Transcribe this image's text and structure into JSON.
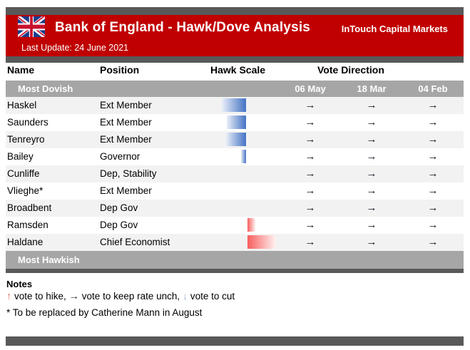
{
  "header": {
    "title": "Bank of England - Hawk/Dove Analysis",
    "brand": "InTouch Capital Markets",
    "last_update": "Last Update: 24 June 2021",
    "banner_color": "#C00000",
    "strip_color": "#595959"
  },
  "table": {
    "columns": {
      "name": "Name",
      "position": "Position",
      "hawk_scale": "Hawk Scale",
      "vote_direction": "Vote Direction"
    },
    "section_top": "Most Dovish",
    "section_bottom": "Most Hawkish",
    "vote_dates": [
      "06 May",
      "18 Mar",
      "04 Feb"
    ],
    "arrow_glyphs": {
      "unchanged": "→",
      "hike": "↑",
      "cut": "↓"
    },
    "rows": [
      {
        "name": "Haskel",
        "position": "Ext Member",
        "hawk_scale": -85,
        "votes": [
          "unchanged",
          "unchanged",
          "unchanged"
        ]
      },
      {
        "name": "Saunders",
        "position": "Ext Member",
        "hawk_scale": -68,
        "votes": [
          "unchanged",
          "unchanged",
          "unchanged"
        ]
      },
      {
        "name": "Tenreyro",
        "position": "Ext Member",
        "hawk_scale": -70,
        "votes": [
          "unchanged",
          "unchanged",
          "unchanged"
        ]
      },
      {
        "name": "Bailey",
        "position": "Governor",
        "hawk_scale": -17,
        "votes": [
          "unchanged",
          "unchanged",
          "unchanged"
        ]
      },
      {
        "name": "Cunliffe",
        "position": "Dep, Stability",
        "hawk_scale": 0,
        "votes": [
          "unchanged",
          "unchanged",
          "unchanged"
        ]
      },
      {
        "name": "Vlieghe*",
        "position": "Ext Member",
        "hawk_scale": 0,
        "votes": [
          "unchanged",
          "unchanged",
          "unchanged"
        ]
      },
      {
        "name": "Broadbent",
        "position": "Dep Gov",
        "hawk_scale": 0,
        "votes": [
          "unchanged",
          "unchanged",
          "unchanged"
        ]
      },
      {
        "name": "Ramsden",
        "position": "Dep Gov",
        "hawk_scale": 27,
        "votes": [
          "unchanged",
          "unchanged",
          "unchanged"
        ]
      },
      {
        "name": "Haldane",
        "position": "Chief Economist",
        "hawk_scale": 100,
        "votes": [
          "unchanged",
          "unchanged",
          "unchanged"
        ]
      }
    ],
    "colors": {
      "dove_bar": "#4472C4",
      "hawk_bar": "#F75E5E",
      "section_band": "#A6A6A6",
      "row_alt": "#F2F2F2"
    }
  },
  "notes": {
    "heading": "Notes",
    "legend": [
      {
        "icon": "up-arrow-icon",
        "glyph": "↑",
        "color": "#E57070",
        "label": " vote to hike, "
      },
      {
        "icon": "right-arrow-icon",
        "glyph": "→",
        "color": "#2b2b2b",
        "label": " vote to keep rate unch, "
      },
      {
        "icon": "down-arrow-icon",
        "glyph": "↓",
        "color": "#A9BAD4",
        "label": " vote to cut"
      }
    ],
    "footnote": "* To be replaced by Catherine Mann in August"
  },
  "chart_data": {
    "type": "bar",
    "orientation": "horizontal-diverging",
    "title": "Hawk Scale",
    "categories": [
      "Haskel",
      "Saunders",
      "Tenreyro",
      "Bailey",
      "Cunliffe",
      "Vlieghe*",
      "Broadbent",
      "Ramsden",
      "Haldane"
    ],
    "values": [
      -85,
      -68,
      -70,
      -17,
      0,
      0,
      0,
      27,
      100
    ],
    "xlim": [
      -100,
      100
    ],
    "legend_position": "none",
    "grid": false,
    "annotations": [
      "Most Dovish at top",
      "Most Hawkish at bottom",
      "dashed zero axis",
      "negative = dovish (blue), positive = hawkish (red)"
    ],
    "vote_direction": {
      "dates": [
        "06 May",
        "18 Mar",
        "04 Feb"
      ],
      "all_votes": "unchanged (→) for every member on all three dates"
    }
  }
}
